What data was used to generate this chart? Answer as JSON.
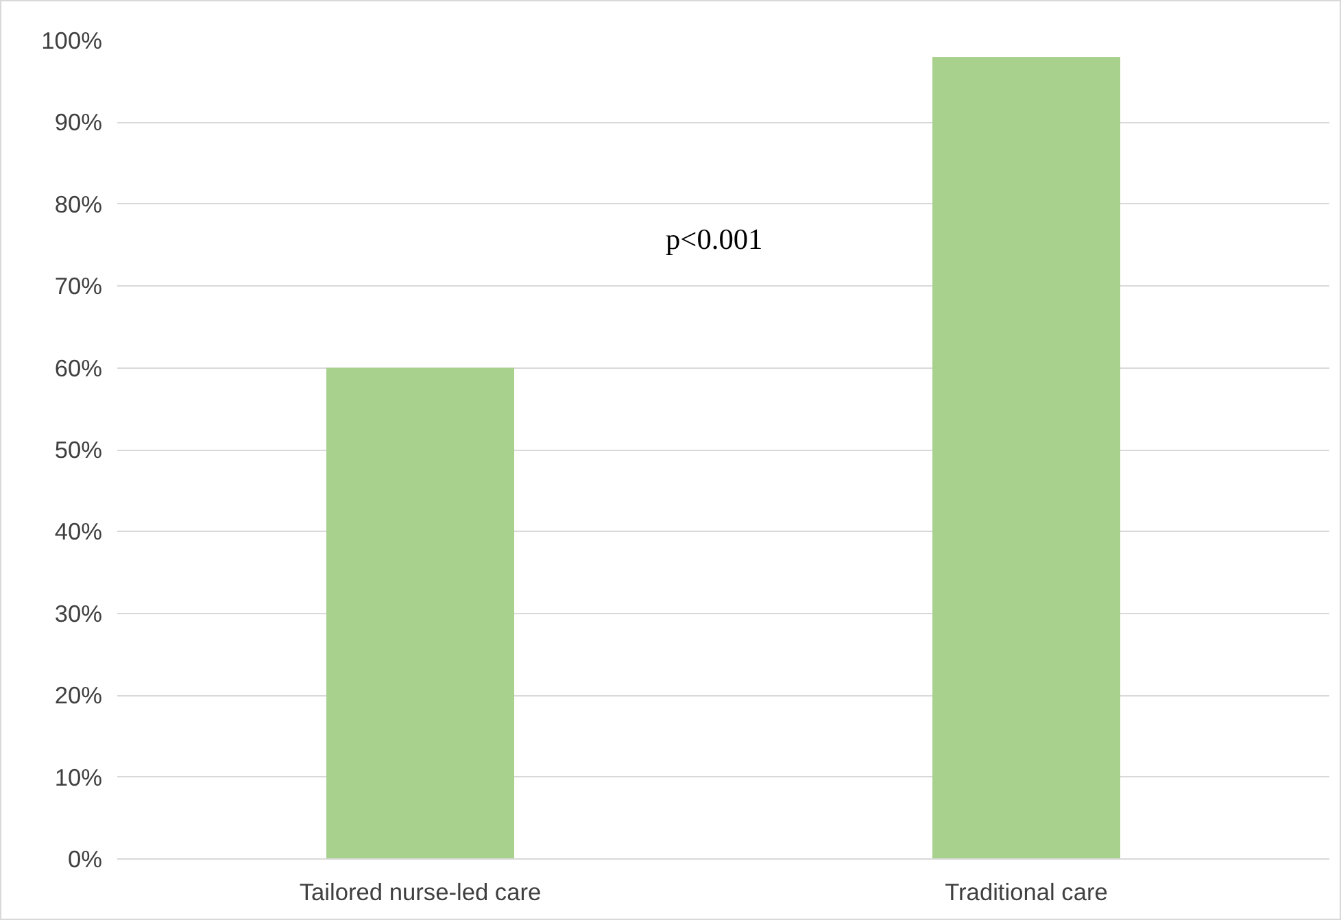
{
  "chart_data": {
    "type": "bar",
    "categories": [
      "Tailored nurse-led care",
      "Traditional care"
    ],
    "values": [
      60,
      98
    ],
    "color": "#a9d18e",
    "ylim": [
      0,
      100
    ],
    "yticks": [
      {
        "value": 0,
        "label": "0%"
      },
      {
        "value": 10,
        "label": "10%"
      },
      {
        "value": 20,
        "label": "20%"
      },
      {
        "value": 30,
        "label": "30%"
      },
      {
        "value": 40,
        "label": "40%"
      },
      {
        "value": 50,
        "label": "50%"
      },
      {
        "value": 60,
        "label": "60%"
      },
      {
        "value": 70,
        "label": "70%"
      },
      {
        "value": 80,
        "label": "80%"
      },
      {
        "value": 90,
        "label": "90%"
      },
      {
        "value": 100,
        "label": "100%"
      }
    ],
    "grid": "y",
    "annotations": [
      "p<0.001"
    ]
  }
}
